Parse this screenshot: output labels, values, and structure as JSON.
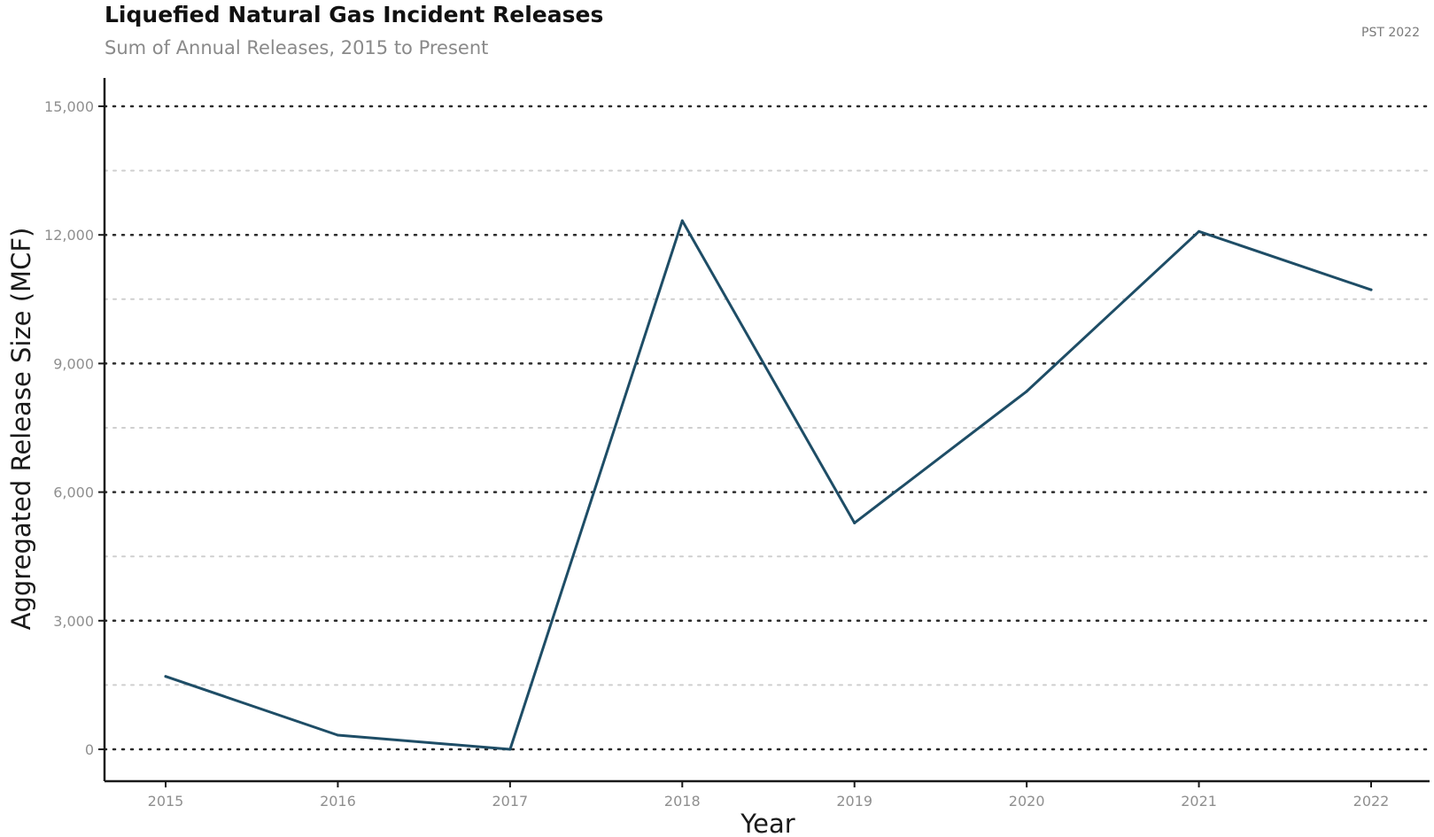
{
  "title": "Liquefied Natural Gas Incident Releases",
  "subtitle": "Sum of Annual Releases, 2015 to Present",
  "caption": "PST 2022",
  "colors": {
    "line": "#1e4d66",
    "major_grid": "#2b2b2b",
    "minor_grid": "#cfcfcf",
    "axis": "#1a1a1a"
  },
  "chart_data": {
    "type": "line",
    "title": "Liquefied Natural Gas Incident Releases",
    "subtitle": "Sum of Annual Releases, 2015 to Present",
    "xlabel": "Year",
    "ylabel": "Aggregated Release Size (MCF)",
    "x": [
      "2015",
      "2016",
      "2017",
      "2018",
      "2019",
      "2020",
      "2021",
      "2022"
    ],
    "y_tick_labels": [
      "0",
      "3,000",
      "6,000",
      "9,000",
      "12,000",
      "15,000"
    ],
    "y_ticks": [
      0,
      3000,
      6000,
      9000,
      12000,
      15000
    ],
    "ylim": [
      -750,
      15700
    ],
    "grid": true,
    "legend": "none",
    "series": [
      {
        "values": [
          1700,
          330,
          0,
          12330,
          5280,
          8350,
          12080,
          10720
        ]
      }
    ]
  }
}
